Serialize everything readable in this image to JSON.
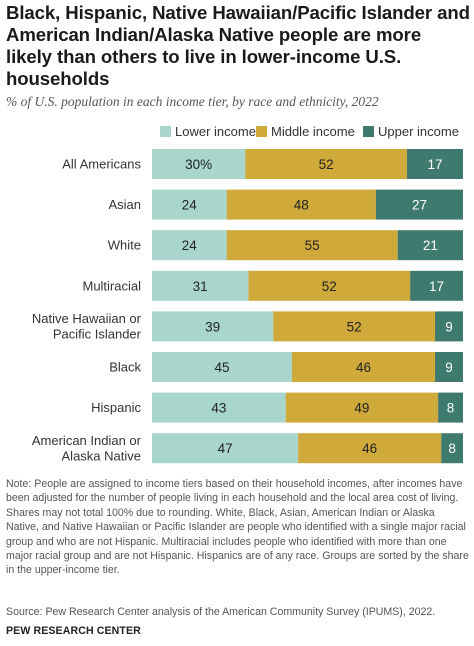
{
  "title": "Black, Hispanic, Native Hawaiian/Pacific Islander and American Indian/Alaska Native people are more likely than others to live in lower-income U.S. households",
  "subtitle": "% of U.S. population in each income tier, by race and ethnicity, 2022",
  "legend": {
    "lower": "Lower income",
    "middle": "Middle income",
    "upper": "Upper income"
  },
  "colors": {
    "lower": "#a9d6cc",
    "middle": "#cfa93a",
    "upper": "#3e7a6d"
  },
  "chart_data": {
    "type": "bar",
    "orientation": "horizontal",
    "stacked": true,
    "categories": [
      "All Americans",
      "Asian",
      "White",
      "Multiracial",
      "Native Hawaiian or Pacific Islander",
      "Black",
      "Hispanic",
      "American Indian or Alaska Native"
    ],
    "category_lines": [
      [
        "All Americans"
      ],
      [
        "Asian"
      ],
      [
        "White"
      ],
      [
        "Multiracial"
      ],
      [
        "Native Hawaiian or",
        "Pacific Islander"
      ],
      [
        "Black"
      ],
      [
        "Hispanic"
      ],
      [
        "American Indian or",
        "Alaska Native"
      ]
    ],
    "series": [
      {
        "name": "Lower income",
        "key": "lower",
        "values": [
          30,
          24,
          24,
          31,
          39,
          45,
          43,
          47
        ]
      },
      {
        "name": "Middle income",
        "key": "middle",
        "values": [
          52,
          48,
          55,
          52,
          52,
          46,
          49,
          46
        ]
      },
      {
        "name": "Upper income",
        "key": "upper",
        "values": [
          17,
          27,
          21,
          17,
          9,
          9,
          8,
          8
        ]
      }
    ],
    "data_labels": [
      [
        "30%",
        "52",
        "17"
      ],
      [
        "24",
        "48",
        "27"
      ],
      [
        "24",
        "55",
        "21"
      ],
      [
        "31",
        "52",
        "17"
      ],
      [
        "39",
        "52",
        "9"
      ],
      [
        "45",
        "46",
        "9"
      ],
      [
        "43",
        "49",
        "8"
      ],
      [
        "47",
        "46",
        "8"
      ]
    ],
    "legend_position": "top",
    "grid": false
  },
  "note": "Note: People are assigned to income tiers based on their household incomes, after incomes have been adjusted for the number of people living in each household and the local area cost of living. Shares may not total 100% due to rounding. White, Black, Asian, American Indian or Alaska Native, and Native Hawaiian or Pacific Islander are people who identified with a single major racial group and who are not Hispanic. Multiracial includes people who identified with more than one major racial group and are not Hispanic. Hispanics are of any race. Groups are sorted by the share in the upper-income tier.",
  "source": "Source: Pew Research Center analysis of the American Community Survey (IPUMS), 2022.",
  "brand": "PEW RESEARCH CENTER"
}
